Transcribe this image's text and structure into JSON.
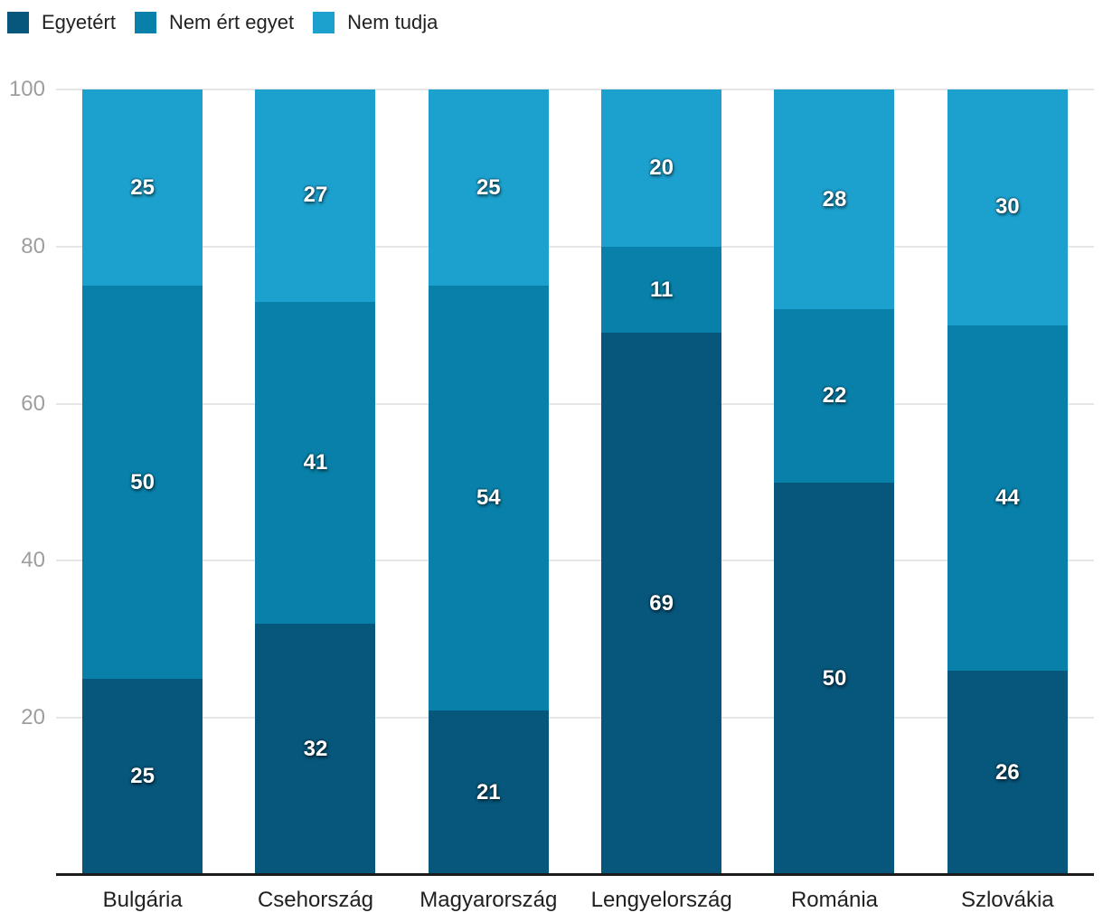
{
  "legend": {
    "items": [
      {
        "label": "Egyetért",
        "color": "#07567B"
      },
      {
        "label": "Nem ért egyet",
        "color": "#0880A9"
      },
      {
        "label": "Nem tudja",
        "color": "#1CA1CE"
      }
    ]
  },
  "axes": {
    "ytick_labels": [
      "20",
      "40",
      "60",
      "80",
      "100"
    ],
    "tick_color": "#9e9e9e",
    "grid_color": "#e6e6e6",
    "axis_line_color": "#1c1c1c",
    "category_label_color": "#212121"
  },
  "chart_data": {
    "type": "bar",
    "stacked": true,
    "orientation": "vertical",
    "title": "",
    "xlabel": "",
    "ylabel": "",
    "categories": [
      "Bulgária",
      "Csehország",
      "Magyarország",
      "Lengyelország",
      "Románia",
      "Szlovákia"
    ],
    "series": [
      {
        "name": "Egyetért",
        "color": "#07567B",
        "values": [
          25,
          32,
          21,
          69,
          50,
          26
        ]
      },
      {
        "name": "Nem ért egyet",
        "color": "#0880A9",
        "values": [
          50,
          41,
          54,
          11,
          22,
          44
        ]
      },
      {
        "name": "Nem tudja",
        "color": "#1CA1CE",
        "values": [
          25,
          27,
          25,
          20,
          28,
          30
        ]
      }
    ],
    "ylim": [
      0,
      100
    ],
    "yticks": [
      20,
      40,
      60,
      80,
      100
    ],
    "grid": true,
    "legend_position": "top-left",
    "value_labels": true
  }
}
